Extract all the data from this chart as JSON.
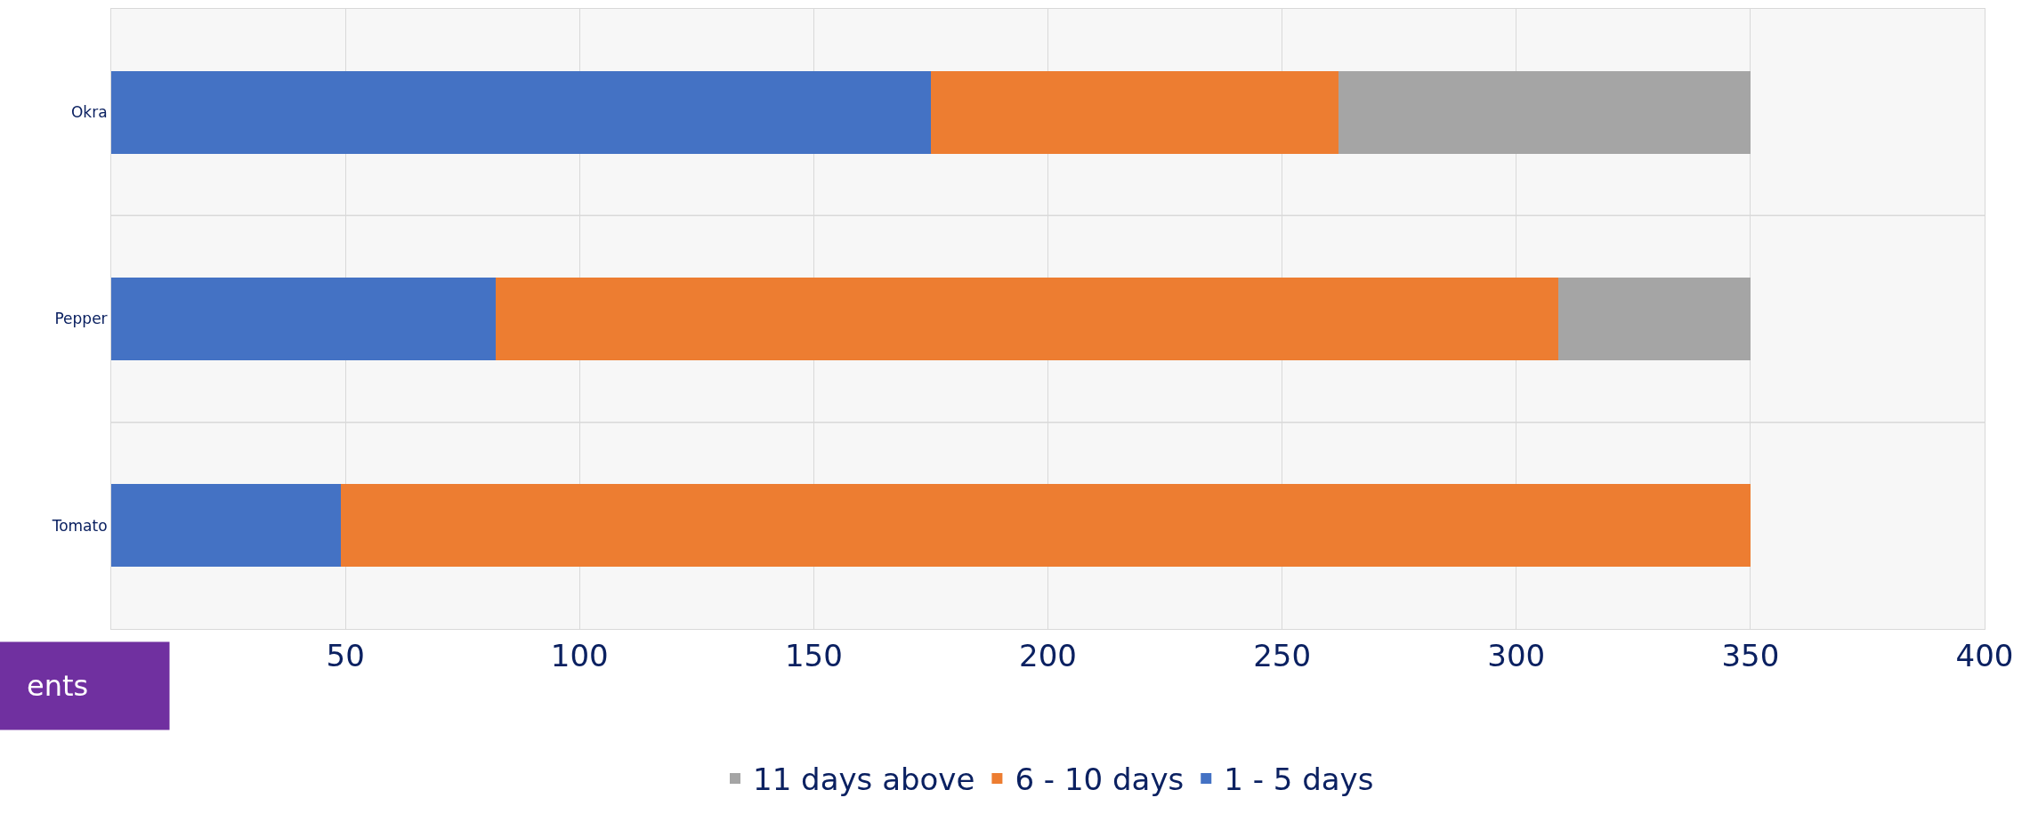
{
  "chart_data": {
    "type": "bar",
    "orientation": "horizontal",
    "stacked": true,
    "categories": [
      "Okra",
      "Pepper",
      "Tomato"
    ],
    "series": [
      {
        "name": "1 - 5 days",
        "color": "#4472c4",
        "values": [
          175,
          82,
          49
        ]
      },
      {
        "name": "6 - 10 days",
        "color": "#ed7d31",
        "values": [
          87,
          227,
          301
        ]
      },
      {
        "name": "11 days above",
        "color": "#a5a5a5",
        "values": [
          88,
          41,
          0
        ]
      }
    ],
    "xlim": [
      0,
      400
    ],
    "xticks": [
      {
        "value": 0,
        "label": null
      },
      50,
      100,
      150,
      200,
      250,
      300,
      350,
      400
    ],
    "grid": "x",
    "legend": "bottom",
    "annotations": [
      "ents"
    ]
  }
}
